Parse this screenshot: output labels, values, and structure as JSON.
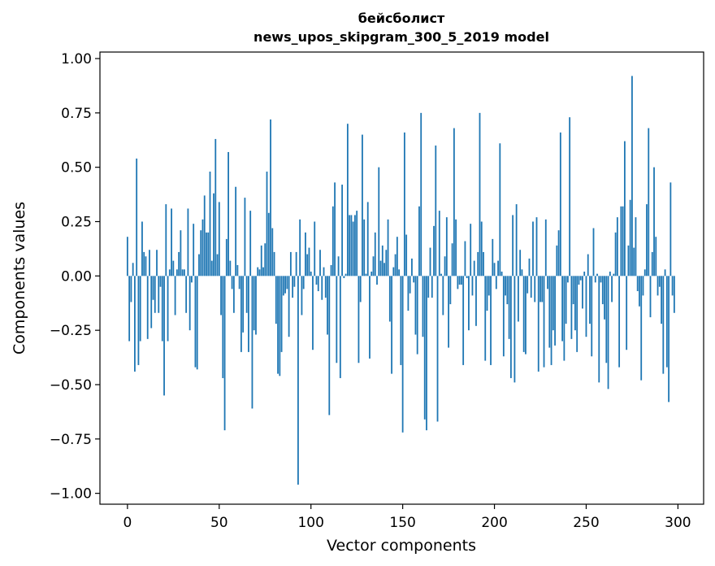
{
  "chart_data": {
    "type": "bar",
    "title_line1": "бейсболист",
    "title_line2": "news_upos_skipgram_300_5_2019 model",
    "xlabel": "Vector components",
    "ylabel": "Components values",
    "xlim": [
      -15,
      314
    ],
    "ylim": [
      -1.05,
      1.03
    ],
    "x_ticks": [
      0,
      50,
      100,
      150,
      200,
      250,
      300
    ],
    "x_tick_labels": [
      "0",
      "50",
      "100",
      "150",
      "200",
      "250",
      "300"
    ],
    "y_ticks": [
      1.0,
      0.75,
      0.5,
      0.25,
      0.0,
      -0.25,
      -0.5,
      -0.75,
      -1.0
    ],
    "y_tick_labels": [
      "1.00",
      "0.75",
      "0.50",
      "0.25",
      "0.00",
      "−0.25",
      "−0.50",
      "−0.75",
      "−1.00"
    ],
    "grid": false,
    "bar_color": "#1f77b4",
    "x": "0..299",
    "values": [
      0.18,
      -0.3,
      -0.12,
      0.06,
      -0.44,
      0.54,
      -0.41,
      -0.3,
      0.25,
      0.11,
      0.09,
      -0.29,
      0.12,
      -0.24,
      -0.11,
      -0.17,
      0.12,
      -0.17,
      -0.05,
      -0.3,
      -0.55,
      0.33,
      -0.3,
      0.03,
      0.31,
      0.07,
      -0.18,
      0.03,
      0.11,
      0.21,
      0.03,
      0.03,
      -0.17,
      0.31,
      -0.25,
      -0.03,
      0.24,
      -0.42,
      -0.43,
      0.1,
      0.21,
      0.26,
      0.37,
      0.2,
      0.2,
      0.48,
      0.07,
      0.38,
      0.63,
      0.1,
      0.34,
      -0.18,
      -0.47,
      -0.71,
      0.17,
      0.57,
      0.07,
      -0.06,
      -0.17,
      0.41,
      0.05,
      -0.06,
      -0.35,
      -0.26,
      0.36,
      -0.17,
      -0.35,
      0.3,
      -0.61,
      -0.25,
      -0.27,
      0.04,
      0.03,
      0.14,
      0.04,
      0.15,
      0.48,
      0.29,
      0.72,
      0.22,
      0.11,
      -0.22,
      -0.45,
      -0.46,
      -0.35,
      -0.09,
      -0.08,
      -0.06,
      -0.28,
      0.11,
      -0.1,
      -0.05,
      0.11,
      -0.96,
      0.26,
      -0.18,
      -0.06,
      0.2,
      0.1,
      0.13,
      0.02,
      -0.34,
      0.25,
      -0.04,
      -0.07,
      0.12,
      -0.11,
      0.04,
      -0.1,
      -0.27,
      -0.64,
      0.05,
      0.32,
      0.43,
      -0.4,
      0.09,
      -0.47,
      0.42,
      -0.01,
      0.01,
      0.7,
      0.28,
      0.28,
      0.25,
      0.28,
      0.3,
      -0.4,
      -0.12,
      0.65,
      0.26,
      0.01,
      0.34,
      -0.38,
      0.02,
      0.09,
      0.2,
      -0.04,
      0.5,
      0.07,
      0.14,
      0.06,
      0.12,
      0.26,
      -0.21,
      -0.45,
      0.04,
      0.1,
      0.18,
      0.03,
      -0.41,
      -0.72,
      0.66,
      0.19,
      -0.16,
      -0.08,
      0.08,
      -0.03,
      -0.27,
      -0.36,
      0.32,
      0.75,
      -0.28,
      -0.66,
      -0.71,
      -0.1,
      0.13,
      -0.1,
      0.23,
      0.6,
      -0.67,
      0.3,
      0.01,
      -0.18,
      0.09,
      0.27,
      -0.33,
      -0.13,
      0.15,
      0.68,
      0.26,
      -0.06,
      -0.04,
      -0.04,
      -0.41,
      0.16,
      -0.01,
      -0.25,
      0.24,
      -0.09,
      0.07,
      -0.23,
      0.11,
      0.75,
      0.25,
      0.11,
      -0.39,
      -0.16,
      -0.09,
      -0.41,
      0.17,
      0.06,
      -0.06,
      0.07,
      0.61,
      0.02,
      -0.37,
      -0.09,
      -0.13,
      -0.29,
      -0.47,
      0.28,
      -0.49,
      0.33,
      -0.21,
      0.12,
      0.03,
      -0.35,
      -0.36,
      -0.08,
      0.08,
      -0.1,
      0.25,
      -0.12,
      0.27,
      -0.44,
      -0.12,
      -0.12,
      -0.42,
      0.26,
      -0.06,
      -0.33,
      -0.41,
      -0.25,
      -0.32,
      0.14,
      0.21,
      0.66,
      -0.3,
      -0.39,
      -0.22,
      -0.03,
      0.73,
      -0.29,
      -0.13,
      -0.25,
      -0.35,
      -0.04,
      -0.02,
      -0.15,
      0.02,
      -0.28,
      0.1,
      -0.22,
      -0.37,
      0.22,
      -0.03,
      0.01,
      -0.49,
      -0.03,
      -0.13,
      -0.2,
      -0.4,
      -0.52,
      0.02,
      -0.12,
      0.01,
      0.2,
      0.27,
      -0.42,
      0.32,
      0.32,
      0.62,
      -0.34,
      0.14,
      0.35,
      0.92,
      0.13,
      0.27,
      -0.07,
      -0.14,
      -0.48,
      -0.09,
      0.03,
      0.33,
      0.68,
      -0.19,
      0.11,
      0.5,
      0.18,
      -0.09,
      -0.05,
      -0.22,
      -0.45,
      0.03,
      -0.42,
      -0.58,
      0.43,
      -0.09,
      -0.17
    ]
  }
}
